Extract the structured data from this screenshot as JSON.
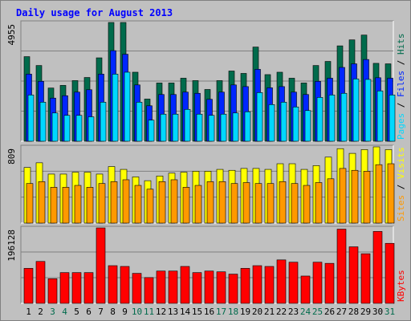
{
  "title": "Daily usage for August 2013",
  "colors": {
    "hits": "#006b4c",
    "files": "#0026ff",
    "pages": "#00d8ff",
    "visits": "#ffff00",
    "sites": "#ff9900",
    "kbytes": "#ff0000",
    "title": "#0000ff",
    "weekend_day": "#006b4c",
    "weekday": "#000000",
    "panel_bg": "#c0c0c0",
    "grid": "#808080"
  },
  "chart_data": [
    {
      "type": "bar",
      "panel": "top",
      "max_label": "4955",
      "ylim": [
        0,
        4955
      ],
      "legend": {
        "pages": "Pages",
        "files": "Files",
        "hits": "Hits",
        "sep": " / "
      },
      "categories": [
        "1",
        "2",
        "3",
        "4",
        "5",
        "6",
        "7",
        "8",
        "9",
        "10",
        "11",
        "12",
        "13",
        "14",
        "15",
        "16",
        "17",
        "18",
        "19",
        "20",
        "21",
        "22",
        "23",
        "24",
        "25",
        "26",
        "27",
        "28",
        "29",
        "30",
        "31"
      ],
      "series": [
        {
          "name": "Hits",
          "values": [
            3530,
            3160,
            2220,
            2330,
            2530,
            2660,
            3480,
            4955,
            4955,
            2880,
            1760,
            2430,
            2430,
            2630,
            2530,
            2160,
            2530,
            2930,
            2830,
            3930,
            2780,
            2880,
            2630,
            2430,
            3160,
            3330,
            3980,
            4230,
            4430,
            3250,
            3230
          ]
        },
        {
          "name": "Files",
          "values": [
            2800,
            2500,
            1800,
            1900,
            2050,
            2150,
            2800,
            3780,
            3630,
            2350,
            1480,
            1950,
            1950,
            2050,
            2000,
            1750,
            2050,
            2350,
            2280,
            3000,
            2230,
            2280,
            2050,
            1950,
            2500,
            2630,
            3080,
            3230,
            3410,
            2650,
            2630
          ]
        },
        {
          "name": "Pages",
          "values": [
            1930,
            1630,
            1180,
            1080,
            1080,
            1020,
            1630,
            2800,
            2880,
            1630,
            880,
            1130,
            1130,
            1330,
            1130,
            1080,
            1130,
            1180,
            1230,
            2030,
            1530,
            1630,
            1430,
            1280,
            1830,
            1930,
            2000,
            2600,
            2580,
            2100,
            1930
          ]
        }
      ]
    },
    {
      "type": "bar",
      "panel": "middle",
      "max_label": "809",
      "ylim": [
        0,
        809
      ],
      "legend": {
        "sites": "Sites",
        "visits": "Visits",
        "sep": " / "
      },
      "categories": [
        "1",
        "2",
        "3",
        "4",
        "5",
        "6",
        "7",
        "8",
        "9",
        "10",
        "11",
        "12",
        "13",
        "14",
        "15",
        "16",
        "17",
        "18",
        "19",
        "20",
        "21",
        "22",
        "23",
        "24",
        "25",
        "26",
        "27",
        "28",
        "29",
        "30",
        "31"
      ],
      "series": [
        {
          "name": "Visits",
          "values": [
            590,
            640,
            520,
            520,
            540,
            540,
            520,
            600,
            570,
            490,
            450,
            500,
            530,
            540,
            550,
            550,
            570,
            560,
            580,
            580,
            570,
            630,
            630,
            570,
            610,
            700,
            790,
            740,
            780,
            809,
            780
          ]
        },
        {
          "name": "Sites",
          "values": [
            420,
            440,
            380,
            380,
            400,
            380,
            420,
            440,
            460,
            400,
            360,
            440,
            460,
            380,
            400,
            440,
            440,
            420,
            430,
            420,
            420,
            440,
            420,
            400,
            430,
            470,
            580,
            560,
            550,
            620,
            630
          ]
        }
      ]
    },
    {
      "type": "bar",
      "panel": "bottom",
      "max_label": "196128",
      "ylim": [
        0,
        196128
      ],
      "legend": {
        "kbytes": "KBytes"
      },
      "categories": [
        "1",
        "2",
        "3",
        "4",
        "5",
        "6",
        "7",
        "8",
        "9",
        "10",
        "11",
        "12",
        "13",
        "14",
        "15",
        "16",
        "17",
        "18",
        "19",
        "20",
        "21",
        "22",
        "23",
        "24",
        "25",
        "26",
        "27",
        "28",
        "29",
        "30",
        "31"
      ],
      "series": [
        {
          "name": "KBytes",
          "values": [
            91000,
            109000,
            64000,
            80000,
            80000,
            80000,
            196128,
            98000,
            96000,
            78000,
            67000,
            84000,
            84000,
            96000,
            80000,
            84000,
            82000,
            76000,
            91000,
            98000,
            96000,
            113000,
            107000,
            71000,
            107000,
            104000,
            193000,
            147000,
            129000,
            187000,
            156000
          ]
        }
      ]
    }
  ],
  "days": [
    "1",
    "2",
    "3",
    "4",
    "5",
    "6",
    "7",
    "8",
    "9",
    "10",
    "11",
    "12",
    "13",
    "14",
    "15",
    "16",
    "17",
    "18",
    "19",
    "20",
    "21",
    "22",
    "23",
    "24",
    "25",
    "26",
    "27",
    "28",
    "29",
    "30",
    "31"
  ],
  "weekend_days": [
    "3",
    "4",
    "10",
    "11",
    "17",
    "18",
    "24",
    "25",
    "31"
  ]
}
